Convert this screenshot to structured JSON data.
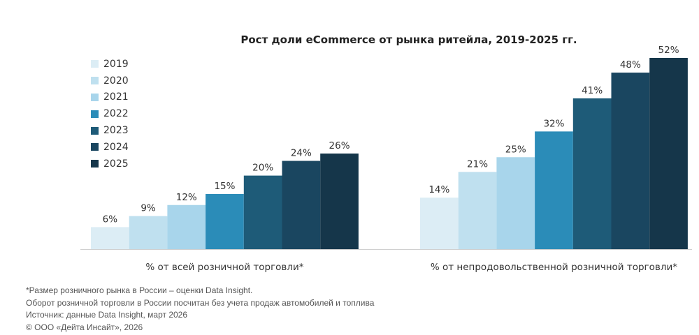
{
  "chart_data": {
    "type": "bar",
    "title": "Рост доли eCommerce от рынка ритейла, 2019-2025 гг.",
    "categories": [
      "% от всей розничной торговли*",
      "% от непродовольственной розничной торговли*"
    ],
    "series": [
      {
        "name": "2019",
        "color": "#dcedf5",
        "values": [
          6,
          14
        ]
      },
      {
        "name": "2020",
        "color": "#bfe0ef",
        "values": [
          9,
          21
        ]
      },
      {
        "name": "2021",
        "color": "#a8d5eb",
        "values": [
          12,
          25
        ]
      },
      {
        "name": "2022",
        "color": "#2b8cb8",
        "values": [
          15,
          32
        ]
      },
      {
        "name": "2023",
        "color": "#1e5b78",
        "values": [
          20,
          41
        ]
      },
      {
        "name": "2024",
        "color": "#1a4660",
        "values": [
          24,
          48
        ]
      },
      {
        "name": "2025",
        "color": "#15364a",
        "values": [
          26,
          52
        ]
      }
    ],
    "value_suffix": "%",
    "legend": "top-left",
    "grid": false,
    "ylim": [
      0,
      55
    ]
  },
  "notes": [
    "*Размер розничного рынка в России – оценки Data Insight.",
    "Оборот розничной торговли в России посчитан без учета продаж автомобилей и топлива",
    "Источник: данные Data Insight, март 2026",
    "© ООО «Дейта Инсайт», 2026"
  ]
}
